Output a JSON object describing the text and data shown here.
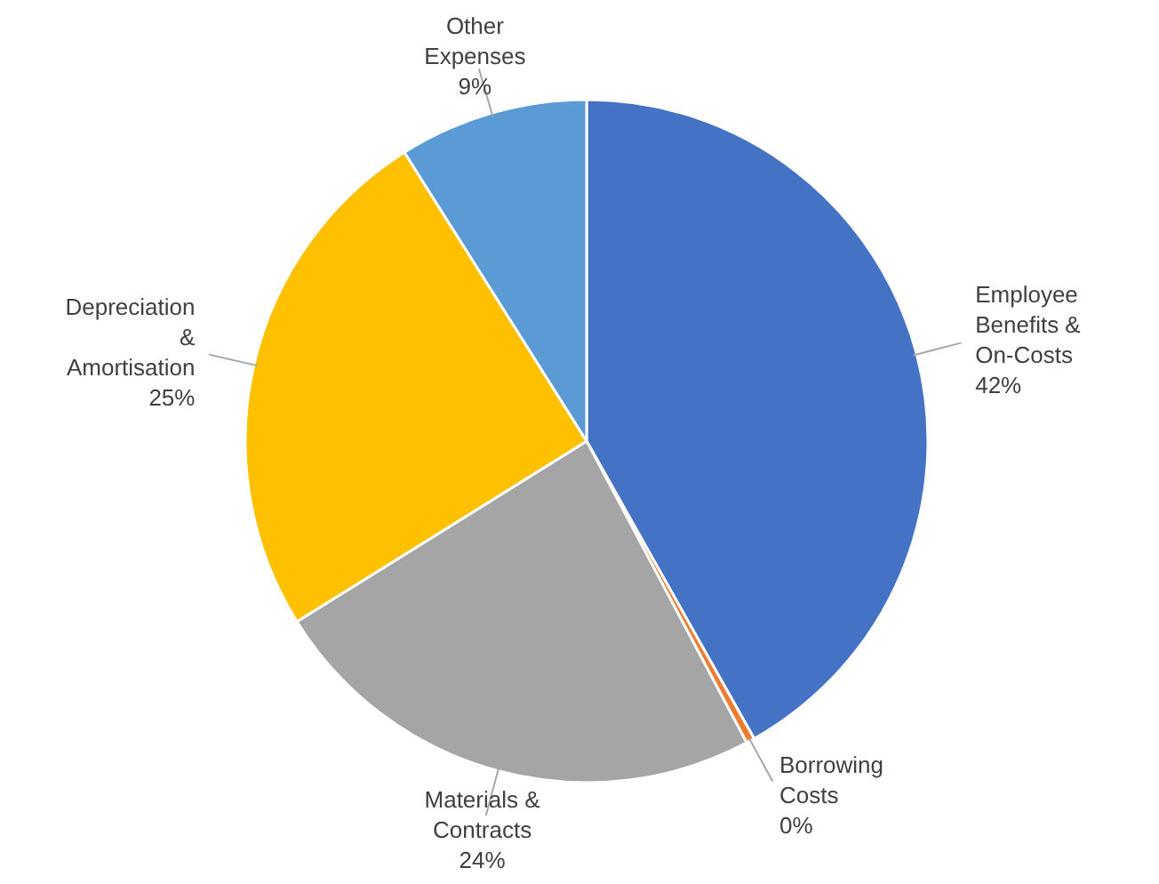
{
  "chart_data": {
    "type": "pie",
    "categories": [
      "Employee Benefits & On-Costs",
      "Borrowing Costs",
      "Materials & Contracts",
      "Depreciation & Amortisation",
      "Other Expenses"
    ],
    "values": [
      42,
      0.4,
      24,
      25,
      9
    ],
    "value_labels": [
      "42%",
      "0%",
      "24%",
      "25%",
      "9%"
    ],
    "colors": [
      "#4472c4",
      "#ed7d31",
      "#a5a5a5",
      "#ffc000",
      "#5b9bd5"
    ]
  }
}
